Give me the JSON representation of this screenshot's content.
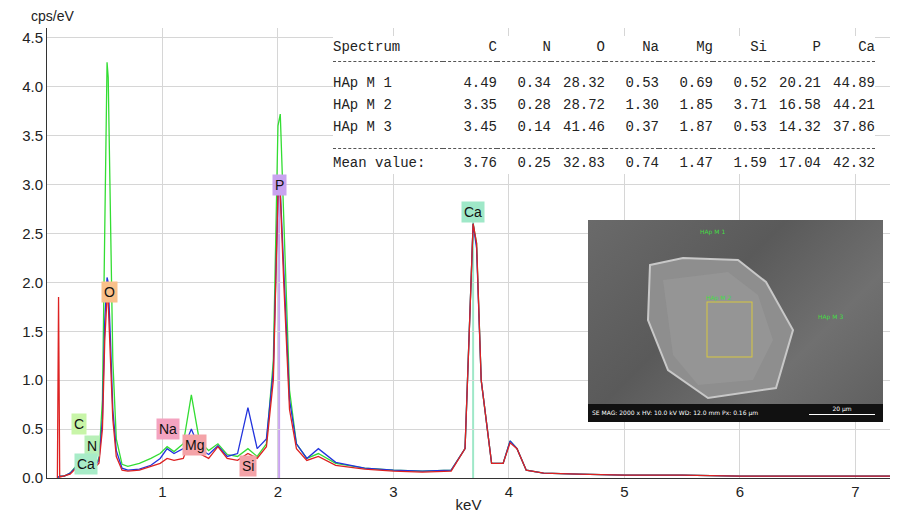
{
  "chart_data": {
    "type": "line",
    "y_label": "cps/eV",
    "x_label": "keV",
    "x": [
      0.09,
      0.1,
      0.11,
      0.15,
      0.2,
      0.25,
      0.3,
      0.35,
      0.4,
      0.45,
      0.48,
      0.5,
      0.52,
      0.53,
      0.55,
      0.57,
      0.6,
      0.65,
      0.7,
      0.8,
      0.9,
      0.98,
      1.04,
      1.1,
      1.18,
      1.25,
      1.32,
      1.4,
      1.48,
      1.56,
      1.65,
      1.74,
      1.82,
      1.9,
      1.96,
      2,
      2.02,
      2.05,
      2.1,
      2.16,
      2.25,
      2.35,
      2.5,
      2.75,
      3,
      3.25,
      3.5,
      3.62,
      3.66,
      3.69,
      3.72,
      3.76,
      3.85,
      3.95,
      4.01,
      4.07,
      4.15,
      4.3,
      4.6,
      5,
      5.5,
      6,
      6.5,
      7,
      7.3
    ],
    "series": [
      {
        "color": "#33dd33",
        "values": [
          0.01,
          0.01,
          0.02,
          0.02,
          0.05,
          0.12,
          0.15,
          0.14,
          0.1,
          0.2,
          0.8,
          2.4,
          4.25,
          4.1,
          2.6,
          1.2,
          0.4,
          0.14,
          0.12,
          0.15,
          0.2,
          0.25,
          0.32,
          0.27,
          0.35,
          0.85,
          0.38,
          0.28,
          0.35,
          0.24,
          0.22,
          0.3,
          0.22,
          0.35,
          1.2,
          3.6,
          3.72,
          2.6,
          0.9,
          0.35,
          0.2,
          0.25,
          0.15,
          0.1,
          0.08,
          0.07,
          0.08,
          0.3,
          1.6,
          2.6,
          2.4,
          1,
          0.15,
          0.15,
          0.38,
          0.3,
          0.08,
          0.05,
          0.04,
          0.03,
          0.03,
          0.02,
          0.02,
          0.02,
          0.02
        ]
      },
      {
        "color": "#2233dd",
        "values": [
          0.01,
          0.01,
          0.02,
          0.02,
          0.05,
          0.11,
          0.14,
          0.12,
          0.09,
          0.18,
          0.6,
          1.6,
          2.05,
          2,
          1.4,
          0.7,
          0.28,
          0.1,
          0.08,
          0.09,
          0.13,
          0.2,
          0.3,
          0.25,
          0.3,
          0.5,
          0.3,
          0.24,
          0.33,
          0.22,
          0.25,
          0.72,
          0.3,
          0.4,
          1.1,
          2.9,
          2.95,
          2.1,
          0.8,
          0.35,
          0.2,
          0.3,
          0.16,
          0.1,
          0.08,
          0.07,
          0.08,
          0.3,
          1.6,
          2.6,
          2.35,
          1,
          0.15,
          0.15,
          0.38,
          0.3,
          0.08,
          0.05,
          0.04,
          0.03,
          0.03,
          0.02,
          0.02,
          0.02,
          0.02
        ]
      },
      {
        "color": "#dd2222",
        "values": [
          0,
          1.85,
          0.01,
          0.02,
          0.04,
          0.1,
          0.12,
          0.11,
          0.09,
          0.15,
          0.5,
          1.4,
          1.85,
          1.8,
          1.2,
          0.6,
          0.22,
          0.08,
          0.07,
          0.08,
          0.12,
          0.15,
          0.2,
          0.18,
          0.2,
          0.42,
          0.25,
          0.2,
          0.32,
          0.2,
          0.18,
          0.25,
          0.2,
          0.32,
          1,
          2.9,
          2.9,
          2,
          0.7,
          0.3,
          0.18,
          0.22,
          0.13,
          0.09,
          0.07,
          0.06,
          0.07,
          0.3,
          1.6,
          2.6,
          2.4,
          1,
          0.15,
          0.15,
          0.36,
          0.3,
          0.08,
          0.05,
          0.04,
          0.03,
          0.03,
          0.02,
          0.02,
          0.02,
          0.02
        ]
      }
    ],
    "xlim": [
      0,
      7.3
    ],
    "xticks": [
      1,
      2,
      3,
      4,
      5,
      6,
      7
    ],
    "ylim": [
      0,
      4.6
    ],
    "yticks": [
      {
        "value": 0,
        "label": "0.0"
      },
      0.5,
      {
        "value": 1,
        "label": "1.0"
      },
      1.5,
      {
        "value": 2,
        "label": "2.0"
      },
      2.5,
      {
        "value": 3,
        "label": "3.0"
      },
      3.5,
      {
        "value": 4,
        "label": "4.0"
      },
      4.5
    ],
    "grid": true,
    "annotations": [
      {
        "text": "C",
        "x": 0.28,
        "y": 0.55,
        "color": "#c8f5a8"
      },
      {
        "text": "N",
        "x": 0.39,
        "y": 0.33,
        "color": "#b8f0b8"
      },
      {
        "text": "Ca",
        "x": 0.34,
        "y": 0.14,
        "color": "#a8ecc8"
      },
      {
        "text": "O",
        "x": 0.54,
        "y": 1.9,
        "color": "#f9c08a"
      },
      {
        "text": "Na",
        "x": 1.05,
        "y": 0.5,
        "color": "#f4a3c0"
      },
      {
        "text": "Mg",
        "x": 1.28,
        "y": 0.34,
        "color": "#f4a3a8"
      },
      {
        "text": "Si",
        "x": 1.74,
        "y": 0.12,
        "color": "#f4a3a8"
      },
      {
        "text": "P",
        "x": 2.01,
        "y": 3.0,
        "color": "#c9a3f0",
        "marker": "line"
      },
      {
        "text": "Ca",
        "x": 3.69,
        "y": 2.72,
        "color": "#9fe8c8",
        "marker": "line"
      }
    ]
  },
  "table": {
    "columns": [
      "Spectrum",
      "C",
      "N",
      "O",
      "Na",
      "Mg",
      "Si",
      "P",
      "Ca"
    ],
    "rows": [
      [
        "HAp M 1",
        "4.49",
        "0.34",
        "28.32",
        "0.53",
        "0.69",
        "0.52",
        "20.21",
        "44.89"
      ],
      [
        "HAp M 2",
        "3.35",
        "0.28",
        "28.72",
        "1.30",
        "1.85",
        "3.71",
        "16.58",
        "44.21"
      ],
      [
        "HAp M 3",
        "3.45",
        "0.14",
        "41.46",
        "0.37",
        "1.87",
        "0.53",
        "14.32",
        "37.86"
      ]
    ],
    "mean": [
      "Mean value:",
      "3.76",
      "0.25",
      "32.83",
      "0.74",
      "1.47",
      "1.59",
      "17.04",
      "42.32"
    ]
  },
  "image": {
    "labels": [
      "HAp M 1",
      "HAp M 2",
      "HAp M 3"
    ],
    "info": "SE MAG: 2000 x HV: 10.0 kV WD: 12.0 mm Px: 0.16 µm",
    "scale_bar": "20 µm"
  }
}
